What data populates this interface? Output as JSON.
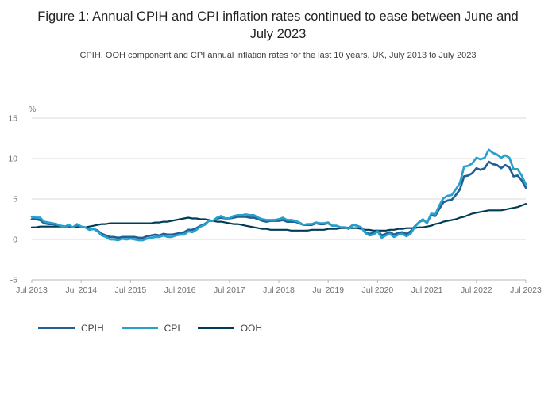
{
  "chart_data": {
    "type": "line",
    "title": "Figure 1: Annual CPIH and CPI inflation rates continued to ease between June and July 2023",
    "subtitle": "CPIH, OOH component and CPI annual inflation rates for the last 10 years, UK, July 2013 to July 2023",
    "ylabel": "%",
    "xlabel": "",
    "ylim": [
      -5,
      15
    ],
    "yticks": [
      -5,
      0,
      5,
      10,
      15
    ],
    "grid": "horizontal",
    "legend_position": "bottom-left",
    "x_frequency": "monthly",
    "x_start": "Jul 2013",
    "x_end": "Jul 2023",
    "x_tick_every": 12,
    "x_tick_labels": [
      "Jul 2013",
      "Jul 2014",
      "Jul 2015",
      "Jul 2016",
      "Jul 2017",
      "Jul 2018",
      "Jul 2019",
      "Jul 2020",
      "Jul 2021",
      "Jul 2022",
      "Jul 2023"
    ],
    "series": [
      {
        "name": "CPIH",
        "color": "#206095",
        "values": [
          2.5,
          2.5,
          2.4,
          2.0,
          1.9,
          1.9,
          1.8,
          1.7,
          1.6,
          1.7,
          1.5,
          1.8,
          1.5,
          1.5,
          1.2,
          1.3,
          1.1,
          0.7,
          0.5,
          0.3,
          0.3,
          0.2,
          0.3,
          0.3,
          0.3,
          0.3,
          0.2,
          0.2,
          0.4,
          0.5,
          0.6,
          0.5,
          0.7,
          0.6,
          0.6,
          0.7,
          0.8,
          0.9,
          1.2,
          1.2,
          1.4,
          1.7,
          1.9,
          2.3,
          2.3,
          2.6,
          2.7,
          2.6,
          2.6,
          2.7,
          2.8,
          2.8,
          2.8,
          2.7,
          2.7,
          2.5,
          2.3,
          2.2,
          2.3,
          2.3,
          2.3,
          2.4,
          2.2,
          2.2,
          2.2,
          2.0,
          1.8,
          1.8,
          1.8,
          2.0,
          1.9,
          1.9,
          2.0,
          1.7,
          1.7,
          1.5,
          1.5,
          1.4,
          1.8,
          1.7,
          1.5,
          0.9,
          0.7,
          0.8,
          1.1,
          0.5,
          0.7,
          0.9,
          0.6,
          0.8,
          0.9,
          0.7,
          1.0,
          1.6,
          2.1,
          2.4,
          2.1,
          3.0,
          2.9,
          3.8,
          4.6,
          4.8,
          4.9,
          5.5,
          6.2,
          7.8,
          7.9,
          8.2,
          8.8,
          8.6,
          8.8,
          9.6,
          9.3,
          9.2,
          8.8,
          9.2,
          8.9,
          7.8,
          7.9,
          7.3,
          6.4
        ]
      },
      {
        "name": "CPI",
        "color": "#27A0CC",
        "values": [
          2.8,
          2.7,
          2.7,
          2.2,
          2.1,
          2.0,
          1.9,
          1.7,
          1.6,
          1.8,
          1.5,
          1.9,
          1.6,
          1.5,
          1.2,
          1.3,
          1.0,
          0.5,
          0.3,
          0.0,
          0.0,
          -0.1,
          0.1,
          0.0,
          0.1,
          0.0,
          -0.1,
          -0.1,
          0.1,
          0.2,
          0.3,
          0.3,
          0.5,
          0.3,
          0.3,
          0.5,
          0.6,
          0.6,
          1.0,
          0.9,
          1.2,
          1.6,
          1.8,
          2.3,
          2.3,
          2.7,
          2.9,
          2.6,
          2.6,
          2.9,
          3.0,
          3.0,
          3.1,
          3.0,
          3.0,
          2.7,
          2.5,
          2.4,
          2.4,
          2.4,
          2.5,
          2.7,
          2.4,
          2.4,
          2.3,
          2.1,
          1.8,
          1.9,
          1.9,
          2.1,
          2.0,
          2.0,
          2.1,
          1.7,
          1.7,
          1.5,
          1.5,
          1.3,
          1.8,
          1.7,
          1.5,
          0.8,
          0.5,
          0.6,
          1.0,
          0.2,
          0.5,
          0.7,
          0.3,
          0.6,
          0.7,
          0.4,
          0.7,
          1.5,
          2.1,
          2.5,
          2.0,
          3.2,
          3.1,
          4.2,
          5.1,
          5.4,
          5.5,
          6.2,
          7.0,
          9.0,
          9.1,
          9.4,
          10.1,
          9.9,
          10.1,
          11.1,
          10.7,
          10.5,
          10.1,
          10.4,
          10.1,
          8.7,
          8.7,
          7.9,
          6.8
        ]
      },
      {
        "name": "OOH",
        "color": "#003C57",
        "values": [
          1.5,
          1.5,
          1.6,
          1.6,
          1.6,
          1.6,
          1.6,
          1.6,
          1.6,
          1.6,
          1.5,
          1.5,
          1.5,
          1.5,
          1.6,
          1.7,
          1.8,
          1.9,
          1.9,
          2.0,
          2.0,
          2.0,
          2.0,
          2.0,
          2.0,
          2.0,
          2.0,
          2.0,
          2.0,
          2.0,
          2.1,
          2.1,
          2.2,
          2.2,
          2.3,
          2.4,
          2.5,
          2.6,
          2.7,
          2.6,
          2.6,
          2.5,
          2.5,
          2.4,
          2.3,
          2.2,
          2.2,
          2.1,
          2.0,
          1.9,
          1.9,
          1.8,
          1.7,
          1.6,
          1.5,
          1.4,
          1.3,
          1.3,
          1.2,
          1.2,
          1.2,
          1.2,
          1.2,
          1.1,
          1.1,
          1.1,
          1.1,
          1.1,
          1.2,
          1.2,
          1.2,
          1.2,
          1.3,
          1.3,
          1.3,
          1.4,
          1.4,
          1.4,
          1.4,
          1.4,
          1.3,
          1.2,
          1.2,
          1.1,
          1.1,
          1.1,
          1.1,
          1.2,
          1.2,
          1.3,
          1.3,
          1.4,
          1.4,
          1.4,
          1.5,
          1.5,
          1.6,
          1.7,
          1.9,
          2.0,
          2.2,
          2.3,
          2.4,
          2.5,
          2.7,
          2.8,
          3.0,
          3.2,
          3.3,
          3.4,
          3.5,
          3.6,
          3.6,
          3.6,
          3.6,
          3.7,
          3.8,
          3.9,
          4.0,
          4.2,
          4.4
        ]
      }
    ]
  }
}
